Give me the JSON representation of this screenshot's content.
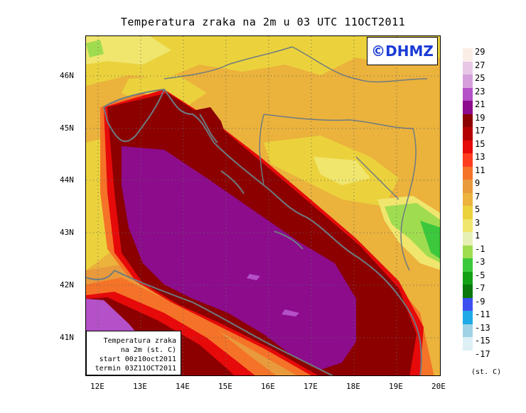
{
  "title": "Temperatura zraka na 2m u 03 UTC 11OCT2011",
  "logo": "©DHMZ",
  "info": {
    "line1": "Temperatura zraka",
    "line2": "na 2m (st. C)",
    "line3": "start 00z10oct2011",
    "line4": "termin 03Z11OCT2011"
  },
  "lat_labels": [
    "46N",
    "45N",
    "44N",
    "43N",
    "42N",
    "41N"
  ],
  "lon_labels": [
    "12E",
    "13E",
    "14E",
    "15E",
    "16E",
    "17E",
    "18E",
    "19E",
    "20E"
  ],
  "legend": {
    "unit": "(st. C)",
    "entries": [
      {
        "label": "29",
        "color": "#fbeee6"
      },
      {
        "label": "27",
        "color": "#e6c8e6"
      },
      {
        "label": "25",
        "color": "#d59fdb"
      },
      {
        "label": "23",
        "color": "#b450c8"
      },
      {
        "label": "21",
        "color": "#8c0c8c"
      },
      {
        "label": "19",
        "color": "#8c0000"
      },
      {
        "label": "17",
        "color": "#b40000"
      },
      {
        "label": "15",
        "color": "#e60a0a"
      },
      {
        "label": "13",
        "color": "#ff3c1e"
      },
      {
        "label": "11",
        "color": "#f57328"
      },
      {
        "label": "9",
        "color": "#e89a3c"
      },
      {
        "label": "7",
        "color": "#ebb23c"
      },
      {
        "label": "5",
        "color": "#ebd23c"
      },
      {
        "label": "3",
        "color": "#f0e66e"
      },
      {
        "label": "1",
        "color": "#e6f0b4"
      },
      {
        "label": "-1",
        "color": "#a0dc50"
      },
      {
        "label": "-3",
        "color": "#3cc83c"
      },
      {
        "label": "-5",
        "color": "#14a014"
      },
      {
        "label": "-7",
        "color": "#0a780a"
      },
      {
        "label": "-9",
        "color": "#3c50f0"
      },
      {
        "label": "-11",
        "color": "#1eaae6"
      },
      {
        "label": "-13",
        "color": "#a0d2e6"
      },
      {
        "label": "-15",
        "color": "#dcf0f5"
      },
      {
        "label": "-17",
        "color": ""
      }
    ]
  }
}
